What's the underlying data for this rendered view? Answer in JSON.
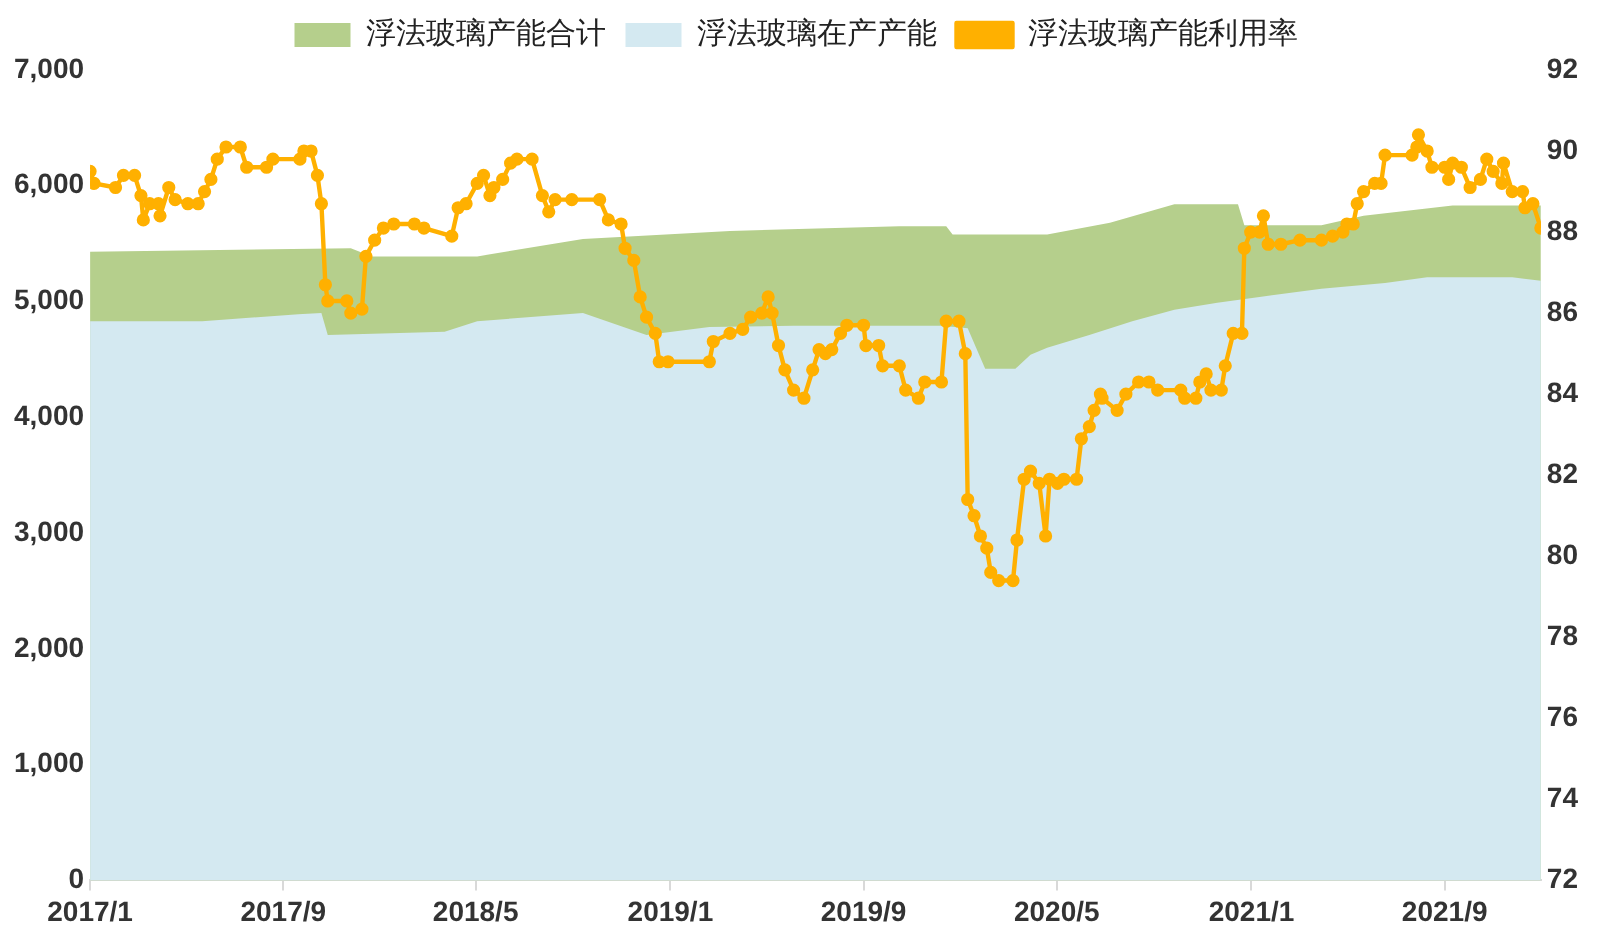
{
  "chart_data": {
    "type": "area",
    "xlim": [
      "2017-01-01",
      "2021-12-31"
    ],
    "xticks": [
      {
        "value": "2017-01-01",
        "label": "2017/1"
      },
      {
        "value": "2017-09-01",
        "label": "2017/9"
      },
      {
        "value": "2018-05-01",
        "label": "2018/5"
      },
      {
        "value": "2019-01-01",
        "label": "2019/1"
      },
      {
        "value": "2019-09-01",
        "label": "2019/9"
      },
      {
        "value": "2020-05-01",
        "label": "2020/5"
      },
      {
        "value": "2021-01-01",
        "label": "2021/1"
      },
      {
        "value": "2021-09-01",
        "label": "2021/9"
      }
    ],
    "ylim": [
      0,
      7000
    ],
    "yticks": [
      0,
      {
        "value": 1000,
        "label": "1,000"
      },
      {
        "value": 2000,
        "label": "2,000"
      },
      {
        "value": 3000,
        "label": "3,000"
      },
      {
        "value": 4000,
        "label": "4,000"
      },
      {
        "value": 5000,
        "label": "5,000"
      },
      {
        "value": 6000,
        "label": "6,000"
      },
      {
        "value": 7000,
        "label": "7,000"
      }
    ],
    "y2lim": [
      72,
      92
    ],
    "y2ticks": [
      72,
      74,
      76,
      78,
      80,
      82,
      84,
      86,
      88,
      90,
      92
    ],
    "grid": false,
    "legend": "top",
    "series": [
      {
        "name": "浮法玻璃产能合计",
        "color": "#b5cf8c",
        "x": [
          "2017-01-01",
          "2017-11-25",
          "2017-12-21",
          "2018-05-03",
          "2018-09-13",
          "2019-03-17",
          "2019-10-16",
          "2019-12-14",
          "2019-12-22",
          "2020-04-19",
          "2020-07-07",
          "2020-09-26",
          "2020-12-15",
          "2020-12-23",
          "2021-03-30",
          "2021-05-22",
          "2021-09-11",
          "2021-12-31"
        ],
        "values": [
          5430,
          5460,
          5390,
          5390,
          5540,
          5610,
          5650,
          5650,
          5580,
          5580,
          5680,
          5840,
          5840,
          5660,
          5660,
          5740,
          5830,
          5830
        ]
      },
      {
        "name": "浮法玻璃在产产能",
        "color": "#d4e9f1",
        "x": [
          "2017-01-01",
          "2017-05-22",
          "2017-09-20",
          "2017-10-19",
          "2017-10-27",
          "2018-03-23",
          "2018-05-03",
          "2018-09-13",
          "2018-12-02",
          "2019-02-19",
          "2019-06-05",
          "2019-12-08",
          "2020-01-10",
          "2020-02-01",
          "2020-03-10",
          "2020-03-29",
          "2020-04-19",
          "2020-06-11",
          "2020-08-04",
          "2020-09-26",
          "2020-11-19",
          "2021-01-11",
          "2021-03-30",
          "2021-06-18",
          "2021-08-10",
          "2021-11-25",
          "2021-12-31"
        ],
        "values": [
          4830,
          4830,
          4890,
          4900,
          4710,
          4740,
          4830,
          4900,
          4710,
          4780,
          4790,
          4790,
          4770,
          4420,
          4420,
          4540,
          4600,
          4710,
          4830,
          4930,
          4990,
          5040,
          5110,
          5160,
          5210,
          5210,
          5180
        ]
      },
      {
        "name": "浮法玻璃产能利用率",
        "type": "line",
        "axis": "y2",
        "color": "#ffb000",
        "marker": "circle",
        "line_style": "solid",
        "x": [
          "2017-01-01",
          "2017-01-06",
          "2017-02-02",
          "2017-02-12",
          "2017-02-26",
          "2017-03-06",
          "2017-03-09",
          "2017-03-17",
          "2017-03-28",
          "2017-03-30",
          "2017-04-10",
          "2017-04-18",
          "2017-05-04",
          "2017-05-17",
          "2017-05-25",
          "2017-06-02",
          "2017-06-10",
          "2017-06-21",
          "2017-07-09",
          "2017-07-17",
          "2017-08-11",
          "2017-08-19",
          "2017-09-22",
          "2017-09-27",
          "2017-10-06",
          "2017-10-14",
          "2017-10-19",
          "2017-10-24",
          "2017-10-27",
          "2017-11-20",
          "2017-11-25",
          "2017-12-09",
          "2017-12-14",
          "2017-12-25",
          "2018-01-05",
          "2018-01-18",
          "2018-02-13",
          "2018-02-25",
          "2018-04-01",
          "2018-04-09",
          "2018-04-19",
          "2018-05-03",
          "2018-05-11",
          "2018-05-19",
          "2018-05-24",
          "2018-06-04",
          "2018-06-14",
          "2018-06-22",
          "2018-07-11",
          "2018-07-24",
          "2018-08-01",
          "2018-08-09",
          "2018-08-30",
          "2018-10-04",
          "2018-10-15",
          "2018-10-31",
          "2018-11-05",
          "2018-11-16",
          "2018-11-24",
          "2018-12-02",
          "2018-12-13",
          "2018-12-18",
          "2018-12-29",
          "2019-02-19",
          "2019-02-24",
          "2019-03-17",
          "2019-04-02",
          "2019-04-12",
          "2019-04-26",
          "2019-05-04",
          "2019-05-09",
          "2019-05-17",
          "2019-05-25",
          "2019-06-05",
          "2019-06-18",
          "2019-06-29",
          "2019-07-07",
          "2019-07-15",
          "2019-07-23",
          "2019-08-03",
          "2019-08-11",
          "2019-09-01",
          "2019-09-04",
          "2019-09-20",
          "2019-09-25",
          "2019-10-16",
          "2019-10-24",
          "2019-11-09",
          "2019-11-17",
          "2019-12-08",
          "2019-12-14",
          "2019-12-30",
          "2020-01-07",
          "2020-01-10",
          "2020-01-18",
          "2020-01-26",
          "2020-02-03",
          "2020-02-08",
          "2020-02-18",
          "2020-03-07",
          "2020-03-12",
          "2020-03-21",
          "2020-03-29",
          "2020-04-09",
          "2020-04-17",
          "2020-04-22",
          "2020-05-02",
          "2020-05-10",
          "2020-05-26",
          "2020-06-01",
          "2020-06-11",
          "2020-06-17",
          "2020-06-25",
          "2020-06-27",
          "2020-07-16",
          "2020-07-27",
          "2020-08-12",
          "2020-08-25",
          "2020-09-05",
          "2020-10-04",
          "2020-10-09",
          "2020-10-23",
          "2020-10-28",
          "2020-11-05",
          "2020-11-11",
          "2020-11-24",
          "2020-11-29",
          "2020-12-09",
          "2020-12-20",
          "2020-12-23",
          "2020-12-31",
          "2021-01-11",
          "2021-01-16",
          "2021-01-22",
          "2021-02-07",
          "2021-03-03",
          "2021-03-30",
          "2021-04-13",
          "2021-04-26",
          "2021-05-01",
          "2021-05-09",
          "2021-05-14",
          "2021-05-22",
          "2021-06-05",
          "2021-06-13",
          "2021-06-18",
          "2021-07-22",
          "2021-07-28",
          "2021-07-30",
          "2021-08-10",
          "2021-08-16",
          "2021-09-01",
          "2021-09-06",
          "2021-09-11",
          "2021-09-22",
          "2021-10-03",
          "2021-10-16",
          "2021-10-24",
          "2021-11-01",
          "2021-11-12",
          "2021-11-14",
          "2021-11-25",
          "2021-12-08",
          "2021-12-11",
          "2021-12-21",
          "2021-12-31"
        ],
        "values": [
          89.5,
          89.2,
          89.1,
          89.4,
          89.4,
          88.9,
          88.3,
          88.7,
          88.7,
          88.4,
          89.1,
          88.8,
          88.7,
          88.7,
          89.0,
          89.3,
          89.8,
          90.1,
          90.1,
          89.6,
          89.6,
          89.8,
          89.8,
          90.0,
          90.0,
          89.4,
          88.7,
          86.7,
          86.3,
          86.3,
          86.0,
          86.1,
          87.4,
          87.8,
          88.1,
          88.2,
          88.2,
          88.1,
          87.9,
          88.6,
          88.7,
          89.2,
          89.4,
          88.9,
          89.1,
          89.3,
          89.7,
          89.8,
          89.8,
          88.9,
          88.5,
          88.8,
          88.8,
          88.8,
          88.3,
          88.2,
          87.6,
          87.3,
          86.4,
          85.9,
          85.5,
          84.8,
          84.8,
          84.8,
          85.3,
          85.5,
          85.6,
          85.9,
          86.0,
          86.4,
          86.0,
          85.2,
          84.6,
          84.1,
          83.9,
          84.6,
          85.1,
          85.0,
          85.1,
          85.5,
          85.7,
          85.7,
          85.2,
          85.2,
          84.7,
          84.7,
          84.1,
          83.9,
          84.3,
          84.3,
          85.8,
          85.8,
          85.0,
          81.4,
          81.0,
          80.5,
          80.2,
          79.6,
          79.4,
          79.4,
          80.4,
          81.9,
          82.1,
          81.8,
          80.5,
          81.9,
          81.8,
          81.9,
          81.9,
          82.9,
          83.2,
          83.6,
          84.0,
          83.9,
          83.6,
          84.0,
          84.3,
          84.3,
          84.1,
          84.1,
          83.9,
          83.9,
          84.3,
          84.5,
          84.1,
          84.1,
          84.7,
          85.5,
          85.5,
          87.6,
          88.0,
          88.0,
          88.4,
          87.7,
          87.7,
          87.8,
          87.8,
          87.9,
          88.0,
          88.2,
          88.2,
          88.7,
          89.0,
          89.2,
          89.2,
          89.9,
          89.9,
          90.1,
          90.4,
          90.0,
          89.6,
          89.6,
          89.3,
          89.7,
          89.6,
          89.1,
          89.3,
          89.8,
          89.5,
          89.2,
          89.7,
          89.0,
          89.0,
          88.6,
          88.7,
          88.1
        ]
      }
    ]
  }
}
